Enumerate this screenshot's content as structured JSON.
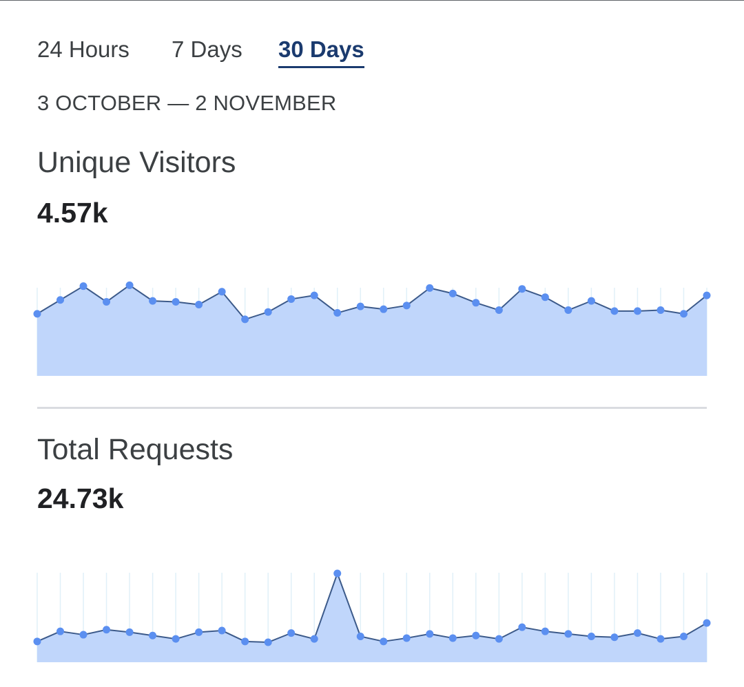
{
  "tabs": [
    {
      "label": "24 Hours",
      "active": false
    },
    {
      "label": "7 Days",
      "active": false
    },
    {
      "label": "30 Days",
      "active": true
    }
  ],
  "date_range": "3 OCTOBER — 2 NOVEMBER",
  "metrics": [
    {
      "title": "Unique Visitors",
      "value": "4.57k"
    },
    {
      "title": "Total Requests",
      "value": "24.73k"
    }
  ],
  "colors": {
    "accent": "#1a3a6e",
    "area_fill": "#c0d6fb",
    "line": "#3c5a8a",
    "point": "#5b8ff0",
    "gridline": "#e0f0f8",
    "divider": "#dadce0"
  },
  "chart_data": [
    {
      "type": "area",
      "name": "Unique Visitors",
      "ylim": [
        0,
        1
      ],
      "grid": true,
      "values": [
        0.68,
        0.83,
        0.98,
        0.81,
        0.99,
        0.82,
        0.81,
        0.78,
        0.92,
        0.62,
        0.7,
        0.84,
        0.88,
        0.69,
        0.76,
        0.73,
        0.77,
        0.96,
        0.9,
        0.8,
        0.72,
        0.95,
        0.86,
        0.72,
        0.82,
        0.71,
        0.71,
        0.72,
        0.68,
        0.88
      ]
    },
    {
      "type": "area",
      "name": "Total Requests",
      "ylim": [
        0,
        1
      ],
      "grid": true,
      "values": [
        0.19,
        0.31,
        0.27,
        0.33,
        0.3,
        0.26,
        0.22,
        0.3,
        0.32,
        0.19,
        0.18,
        0.29,
        0.22,
        1.0,
        0.25,
        0.19,
        0.23,
        0.28,
        0.23,
        0.26,
        0.22,
        0.36,
        0.31,
        0.28,
        0.25,
        0.24,
        0.29,
        0.22,
        0.25,
        0.41
      ]
    }
  ]
}
